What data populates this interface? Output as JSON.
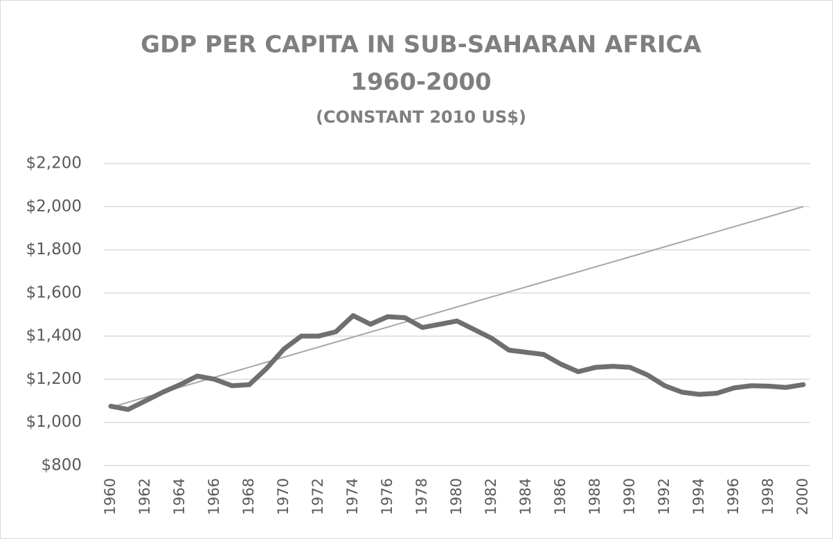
{
  "chart_data": {
    "type": "line",
    "title": [
      "GDP PER CAPITA IN SUB-SAHARAN AFRICA",
      "1960-2000"
    ],
    "subtitle": "(CONSTANT 2010 US$)",
    "categories": [
      "1960",
      null,
      "1962",
      null,
      "1964",
      null,
      "1966",
      null,
      "1968",
      null,
      "1970",
      null,
      "1972",
      null,
      "1974",
      null,
      "1976",
      null,
      "1978",
      null,
      "1980",
      null,
      "1982",
      null,
      "1984",
      null,
      "1986",
      null,
      "1988",
      null,
      "1990",
      null,
      "1992",
      null,
      "1994",
      null,
      "1996",
      null,
      "1998",
      null,
      "2000"
    ],
    "series": [
      {
        "color": "#6f6f6f",
        "values": [
          1075,
          1060,
          1100,
          1140,
          1175,
          1215,
          1200,
          1170,
          1175,
          1250,
          1340,
          1400,
          1400,
          1420,
          1495,
          1455,
          1490,
          1485,
          1440,
          1455,
          1470,
          1430,
          1390,
          1335,
          1325,
          1315,
          1270,
          1235,
          1255,
          1260,
          1255,
          1220,
          1170,
          1140,
          1130,
          1135,
          1160,
          1170,
          1168,
          1162,
          1175
        ]
      }
    ],
    "trendline": {
      "color": "#a6a6a6",
      "values": [
        1070,
        2000
      ]
    },
    "ylim": [
      800,
      2200
    ],
    "yticks": [
      {
        "value": 800,
        "label": "$800"
      },
      {
        "value": 1000,
        "label": "$1,000"
      },
      {
        "value": 1200,
        "label": "$1,200"
      },
      {
        "value": 1400,
        "label": "$1,400"
      },
      {
        "value": 1600,
        "label": "$1,600"
      },
      {
        "value": 1800,
        "label": "$1,800"
      },
      {
        "value": 2000,
        "label": "$2,000"
      },
      {
        "value": 2200,
        "label": "$2,200"
      }
    ],
    "grid": true
  }
}
